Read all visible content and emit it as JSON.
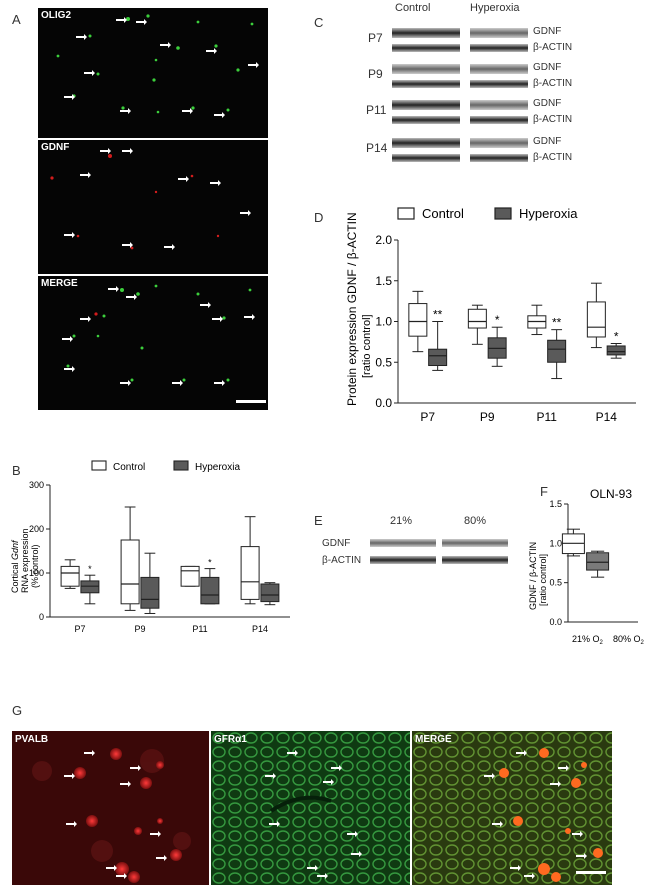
{
  "panels": {
    "A": "A",
    "B": "B",
    "C": "C",
    "D": "D",
    "E": "E",
    "F": "F",
    "G": "G"
  },
  "panelA": {
    "titles": [
      "OLIG2",
      "GDNF",
      "MERGE"
    ]
  },
  "panelB": {
    "legend": [
      "Control",
      "Hyperoxia"
    ],
    "ylabel_pre": "Cortical ",
    "ylabel_gene": "Gdnf",
    "ylabel_line2": "RNA expression",
    "ylabel_line3": "(% control)",
    "yticks": [
      "0",
      "100",
      "200",
      "300"
    ],
    "categories": [
      "P7",
      "P9",
      "P11",
      "P14"
    ],
    "stars": [
      "*",
      "",
      "*",
      ""
    ]
  },
  "panelC": {
    "headers": [
      "Control",
      "Hyperoxia"
    ],
    "rows": [
      "P7",
      "P9",
      "P11",
      "P14"
    ],
    "bands": [
      "GDNF",
      "β-ACTIN"
    ]
  },
  "panelD": {
    "legend": [
      "Control",
      "Hyperoxia"
    ],
    "ylabel_line1": "Protein expression GDNF / β-ACTIN",
    "ylabel_line2": "[ratio control]",
    "yticks": [
      "0.0",
      "0.5",
      "1.0",
      "1.5",
      "2.0"
    ],
    "categories": [
      "P7",
      "P9",
      "P11",
      "P14"
    ],
    "stars": [
      "**",
      "*",
      "**",
      "*"
    ]
  },
  "panelE": {
    "headers": [
      "21%",
      "80%"
    ],
    "bands": [
      "GDNF",
      "β-ACTIN"
    ]
  },
  "panelF": {
    "title": "OLN-93",
    "ylabel_line1": "GDNF / β-ACTIN",
    "ylabel_line2": "[ratio control]",
    "yticks": [
      "0.0",
      "0.5",
      "1.0",
      "1.5"
    ],
    "xlabels": [
      "21% O",
      "80% O"
    ],
    "sub": "2",
    "star": "*"
  },
  "panelG": {
    "titles": [
      "PVALB",
      "GFRα1",
      "MERGE"
    ]
  },
  "colors": {
    "control": "#ffffff",
    "hyperoxia": "#5a5a5a",
    "green": "#36d23a",
    "red": "#e0201c"
  },
  "chart_data": [
    {
      "type": "box",
      "title": "",
      "ylabel": "Cortical Gdnf RNA expression (% control)",
      "ylim": [
        0,
        300
      ],
      "categories": [
        "P7",
        "P9",
        "P11",
        "P14"
      ],
      "series": [
        {
          "name": "Control",
          "boxes": [
            [
              65,
              70,
              100,
              115,
              130
            ],
            [
              15,
              30,
              75,
              175,
              250
            ],
            [
              70,
              70,
              105,
              115,
              115
            ],
            [
              30,
              40,
              80,
              160,
              228
            ]
          ]
        },
        {
          "name": "Hyperoxia",
          "boxes": [
            [
              30,
              55,
              70,
              82,
              95
            ],
            [
              8,
              20,
              40,
              90,
              145
            ],
            [
              30,
              30,
              50,
              90,
              110
            ],
            [
              28,
              35,
              50,
              75,
              78
            ]
          ]
        }
      ]
    },
    {
      "type": "box",
      "title": "",
      "ylabel": "Protein expression GDNF / β-ACTIN [ratio control]",
      "ylim": [
        0,
        2
      ],
      "categories": [
        "P7",
        "P9",
        "P11",
        "P14"
      ],
      "series": [
        {
          "name": "Control",
          "boxes": [
            [
              0.63,
              0.82,
              1.0,
              1.22,
              1.37
            ],
            [
              0.72,
              0.92,
              1.0,
              1.15,
              1.2
            ],
            [
              0.84,
              0.92,
              1.0,
              1.07,
              1.2
            ],
            [
              0.68,
              0.81,
              0.93,
              1.24,
              1.47
            ]
          ]
        },
        {
          "name": "Hyperoxia",
          "boxes": [
            [
              0.4,
              0.46,
              0.58,
              0.66,
              1.0
            ],
            [
              0.45,
              0.55,
              0.67,
              0.8,
              0.93
            ],
            [
              0.3,
              0.5,
              0.66,
              0.77,
              0.9
            ],
            [
              0.55,
              0.59,
              0.63,
              0.7,
              0.73
            ]
          ]
        }
      ]
    },
    {
      "type": "box",
      "title": "OLN-93",
      "ylabel": "GDNF / β-ACTIN [ratio control]",
      "ylim": [
        0,
        1.5
      ],
      "categories": [
        "21% O2",
        "80% O2"
      ],
      "series": [
        {
          "name": "21% O2",
          "boxes": [
            [
              0.84,
              0.87,
              1.0,
              1.12,
              1.18
            ]
          ]
        },
        {
          "name": "80% O2",
          "boxes": [
            [
              0.57,
              0.66,
              0.76,
              0.88,
              0.9
            ]
          ]
        }
      ]
    }
  ]
}
